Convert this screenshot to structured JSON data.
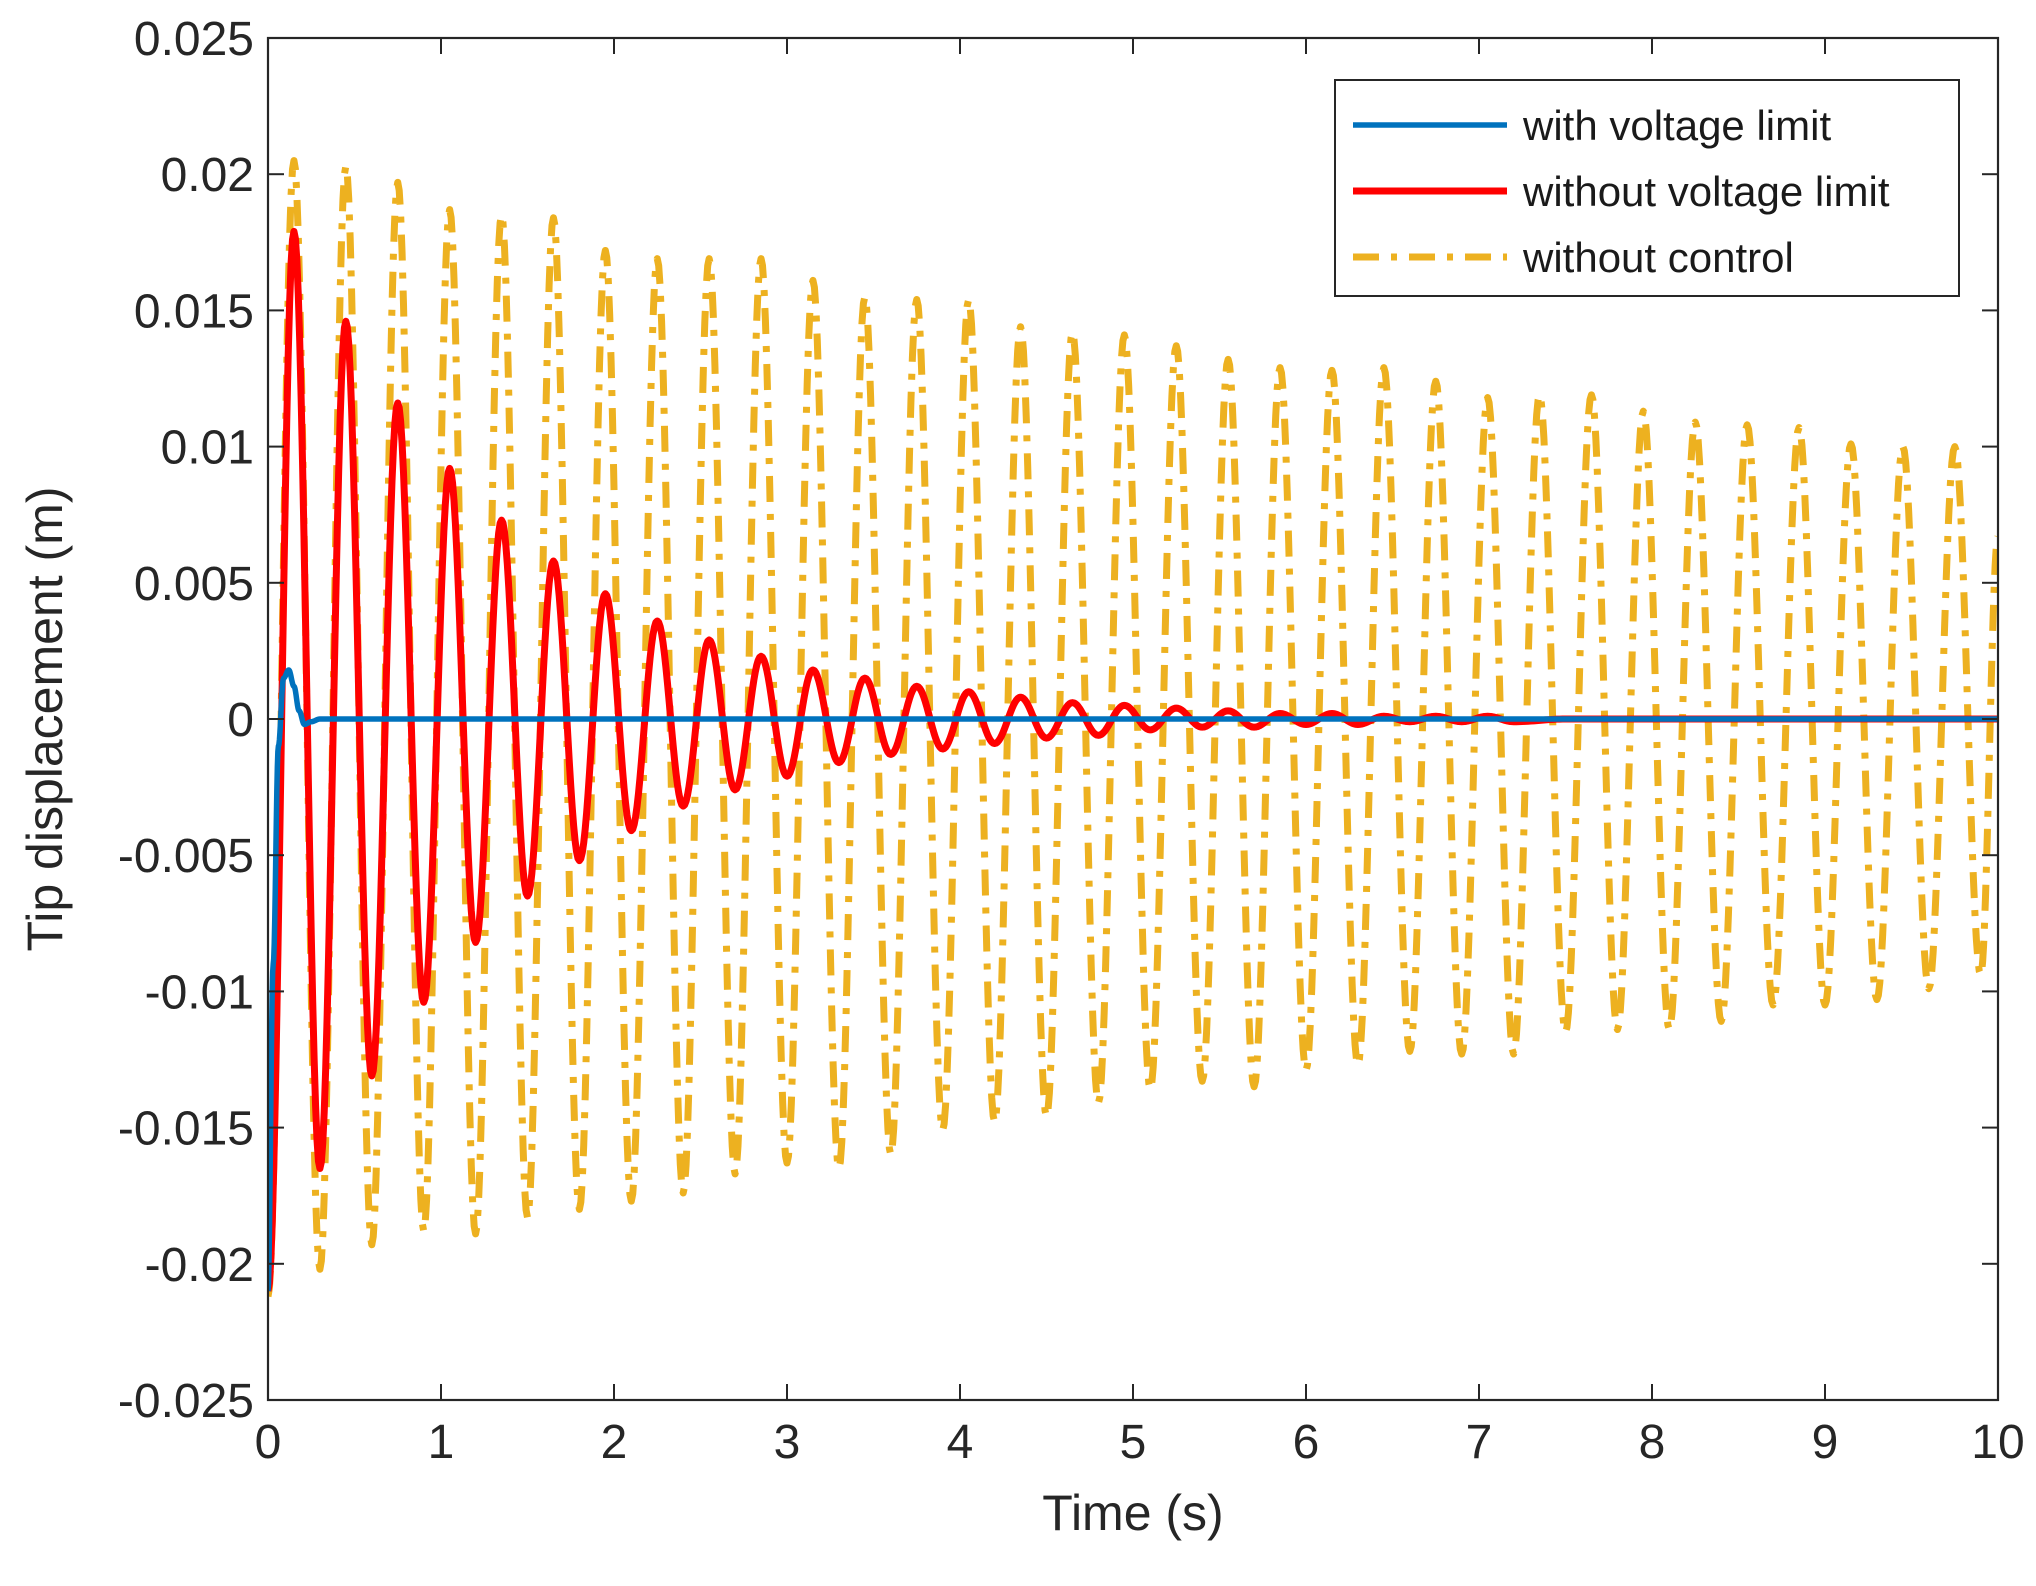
{
  "chart_data": {
    "type": "line",
    "title": "",
    "xlabel": "Time (s)",
    "ylabel": "Tip displacement (m)",
    "xlim": [
      0,
      10
    ],
    "ylim": [
      -0.025,
      0.025
    ],
    "xticks": [
      0,
      1,
      2,
      3,
      4,
      5,
      6,
      7,
      8,
      9,
      10
    ],
    "xtick_labels": [
      "0",
      "1",
      "2",
      "3",
      "4",
      "5",
      "6",
      "7",
      "8",
      "9",
      "10"
    ],
    "yticks": [
      -0.025,
      -0.02,
      -0.015,
      -0.01,
      -0.005,
      0,
      0.005,
      0.01,
      0.015,
      0.02,
      0.025
    ],
    "ytick_labels": [
      "-0.025",
      "-0.02",
      "-0.015",
      "-0.01",
      "-0.005",
      "0",
      "0.005",
      "0.01",
      "0.015",
      "0.02",
      "0.025"
    ],
    "grid": false,
    "legend_position": "top-right",
    "series": [
      {
        "name": "with voltage limit",
        "color": "#0072BD",
        "style": "solid",
        "points": [
          [
            0,
            -0.021
          ],
          [
            0.03,
            -0.009
          ],
          [
            0.06,
            -0.001
          ],
          [
            0.09,
            0.0015
          ],
          [
            0.12,
            0.0018
          ],
          [
            0.15,
            0.0012
          ],
          [
            0.18,
            0.0003
          ],
          [
            0.21,
            -0.0002
          ],
          [
            0.25,
            -0.0001
          ],
          [
            0.3,
            0.0
          ],
          [
            10,
            0.0
          ]
        ]
      },
      {
        "name": "without voltage limit",
        "color": "#FF0000",
        "style": "solid",
        "peaks": [
          [
            0,
            -0.021
          ],
          [
            0.15,
            0.0179
          ],
          [
            0.3,
            -0.0165
          ],
          [
            0.45,
            0.0146
          ],
          [
            0.6,
            -0.0131
          ],
          [
            0.75,
            0.0116
          ],
          [
            0.9,
            -0.0104
          ],
          [
            1.05,
            0.0092
          ],
          [
            1.2,
            -0.0082
          ],
          [
            1.35,
            0.0073
          ],
          [
            1.5,
            -0.0065
          ],
          [
            1.65,
            0.0058
          ],
          [
            1.8,
            -0.0052
          ],
          [
            1.95,
            0.0046
          ],
          [
            2.1,
            -0.0041
          ],
          [
            2.25,
            0.0036
          ],
          [
            2.4,
            -0.0032
          ],
          [
            2.55,
            0.0029
          ],
          [
            2.7,
            -0.0026
          ],
          [
            2.85,
            0.0023
          ],
          [
            3.0,
            -0.0021
          ],
          [
            3.15,
            0.0018
          ],
          [
            3.3,
            -0.0016
          ],
          [
            3.45,
            0.0015
          ],
          [
            3.6,
            -0.0013
          ],
          [
            3.75,
            0.0012
          ],
          [
            3.9,
            -0.0011
          ],
          [
            4.05,
            0.001
          ],
          [
            4.2,
            -0.0009
          ],
          [
            4.35,
            0.0008
          ],
          [
            4.5,
            -0.0007
          ],
          [
            4.65,
            0.0006
          ],
          [
            4.8,
            -0.0006
          ],
          [
            4.95,
            0.0005
          ],
          [
            5.1,
            -0.0004
          ],
          [
            5.25,
            0.0004
          ],
          [
            5.4,
            -0.0003
          ],
          [
            5.55,
            0.0003
          ],
          [
            5.7,
            -0.0003
          ],
          [
            5.85,
            0.0002
          ],
          [
            6.0,
            -0.0002
          ],
          [
            6.15,
            0.0002
          ],
          [
            6.3,
            -0.0002
          ],
          [
            6.45,
            0.0001
          ],
          [
            6.6,
            -0.0001
          ],
          [
            6.75,
            0.0001
          ],
          [
            6.9,
            -0.0001
          ],
          [
            7.05,
            0.0001
          ],
          [
            7.2,
            -0.0001
          ],
          [
            7.5,
            0.0
          ],
          [
            10,
            0.0
          ]
        ]
      },
      {
        "name": "without control",
        "color": "#EDB120",
        "style": "dashdot",
        "peaks": [
          [
            0,
            -0.0212
          ],
          [
            0.15,
            0.0205
          ],
          [
            0.3,
            -0.0202
          ],
          [
            0.45,
            0.0203
          ],
          [
            0.6,
            -0.0193
          ],
          [
            0.75,
            0.0197
          ],
          [
            0.9,
            -0.0188
          ],
          [
            1.05,
            0.0187
          ],
          [
            1.2,
            -0.0189
          ],
          [
            1.35,
            0.0185
          ],
          [
            1.5,
            -0.0183
          ],
          [
            1.65,
            0.0184
          ],
          [
            1.8,
            -0.018
          ],
          [
            1.95,
            0.0172
          ],
          [
            2.1,
            -0.0177
          ],
          [
            2.25,
            0.0169
          ],
          [
            2.4,
            -0.0174
          ],
          [
            2.55,
            0.0169
          ],
          [
            2.7,
            -0.0167
          ],
          [
            2.85,
            0.0169
          ],
          [
            3.0,
            -0.0163
          ],
          [
            3.15,
            0.0161
          ],
          [
            3.3,
            -0.0165
          ],
          [
            3.45,
            0.0155
          ],
          [
            3.6,
            -0.016
          ],
          [
            3.75,
            0.0154
          ],
          [
            3.9,
            -0.0151
          ],
          [
            4.05,
            0.0154
          ],
          [
            4.2,
            -0.0148
          ],
          [
            4.35,
            0.0144
          ],
          [
            4.5,
            -0.0146
          ],
          [
            4.65,
            0.0142
          ],
          [
            4.8,
            -0.0141
          ],
          [
            4.95,
            0.0141
          ],
          [
            5.1,
            -0.0136
          ],
          [
            5.25,
            0.0137
          ],
          [
            5.4,
            -0.0133
          ],
          [
            5.55,
            0.0132
          ],
          [
            5.7,
            -0.0135
          ],
          [
            5.85,
            0.0129
          ],
          [
            6.0,
            -0.0129
          ],
          [
            6.15,
            0.0128
          ],
          [
            6.3,
            -0.0127
          ],
          [
            6.45,
            0.0129
          ],
          [
            6.6,
            -0.0122
          ],
          [
            6.75,
            0.0124
          ],
          [
            6.9,
            -0.0123
          ],
          [
            7.05,
            0.0118
          ],
          [
            7.2,
            -0.0123
          ],
          [
            7.35,
            0.0119
          ],
          [
            7.5,
            -0.0115
          ],
          [
            7.65,
            0.0119
          ],
          [
            7.8,
            -0.0114
          ],
          [
            7.95,
            0.0113
          ],
          [
            8.1,
            -0.0114
          ],
          [
            8.25,
            0.0109
          ],
          [
            8.4,
            -0.0111
          ],
          [
            8.55,
            0.0108
          ],
          [
            8.7,
            -0.0105
          ],
          [
            8.85,
            0.0107
          ],
          [
            9.0,
            -0.0105
          ],
          [
            9.15,
            0.0101
          ],
          [
            9.3,
            -0.0103
          ],
          [
            9.45,
            0.01
          ],
          [
            9.6,
            -0.0099
          ],
          [
            9.75,
            0.01
          ],
          [
            9.9,
            -0.0094
          ],
          [
            10.0,
            0.0067
          ]
        ]
      }
    ]
  }
}
